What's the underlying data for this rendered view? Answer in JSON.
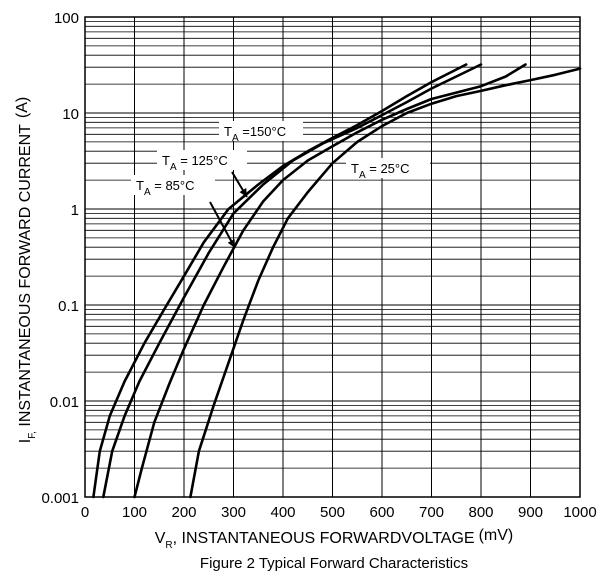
{
  "chart_data": {
    "type": "line",
    "title": "Figure 2 Typical Forward Characteristics",
    "xlabel": {
      "main": "V",
      "sub": "R",
      "rest": ", INSTANTANEOUS FORWARDVOLTAGE",
      "unit": "(mV)"
    },
    "ylabel": {
      "main": "I",
      "sub": "F,",
      "rest": " INSTANTANEOUS FORWARD CURRENT",
      "unit": "(A)"
    },
    "xlim": [
      0,
      1000
    ],
    "ylim": [
      0.001,
      100
    ],
    "yscale": "log",
    "grid": true,
    "x_ticks": [
      "0",
      "100",
      "200",
      "300",
      "400",
      "500",
      "600",
      "700",
      "800",
      "900",
      "1000"
    ],
    "y_ticks": [
      "0.001",
      "0.01",
      "0.1",
      "1",
      "10",
      "100"
    ],
    "series": [
      {
        "name": "T_A = 150°C",
        "label_main": "T",
        "label_sub": "A",
        "label_rest": " =150°C",
        "points": [
          [
            17,
            0.001
          ],
          [
            30,
            0.003
          ],
          [
            50,
            0.007
          ],
          [
            80,
            0.016
          ],
          [
            120,
            0.04
          ],
          [
            160,
            0.09
          ],
          [
            200,
            0.2
          ],
          [
            240,
            0.45
          ],
          [
            290,
            1.0
          ],
          [
            350,
            1.8
          ],
          [
            400,
            2.8
          ],
          [
            450,
            4.0
          ],
          [
            500,
            5.5
          ],
          [
            550,
            7.5
          ],
          [
            600,
            10.5
          ],
          [
            650,
            15
          ],
          [
            700,
            21
          ],
          [
            770,
            32
          ]
        ]
      },
      {
        "name": "T_A = 125°C",
        "label_main": "T",
        "label_sub": "A",
        "label_rest": " = 125°C",
        "points": [
          [
            37,
            0.001
          ],
          [
            55,
            0.003
          ],
          [
            80,
            0.007
          ],
          [
            110,
            0.016
          ],
          [
            150,
            0.04
          ],
          [
            200,
            0.12
          ],
          [
            250,
            0.35
          ],
          [
            300,
            0.9
          ],
          [
            360,
            1.8
          ],
          [
            420,
            3.2
          ],
          [
            480,
            4.8
          ],
          [
            550,
            7.0
          ],
          [
            600,
            9.5
          ],
          [
            650,
            13
          ],
          [
            700,
            18
          ],
          [
            750,
            24
          ],
          [
            800,
            32
          ]
        ]
      },
      {
        "name": "T_A = 85°C",
        "label_main": "T",
        "label_sub": "A",
        "label_rest": " = 85°C",
        "points": [
          [
            100,
            0.001
          ],
          [
            115,
            0.002
          ],
          [
            140,
            0.006
          ],
          [
            170,
            0.015
          ],
          [
            200,
            0.035
          ],
          [
            240,
            0.1
          ],
          [
            280,
            0.25
          ],
          [
            320,
            0.6
          ],
          [
            360,
            1.2
          ],
          [
            400,
            2.0
          ],
          [
            450,
            3.2
          ],
          [
            500,
            4.5
          ],
          [
            550,
            6.3
          ],
          [
            600,
            8.5
          ],
          [
            650,
            11
          ],
          [
            700,
            14
          ],
          [
            800,
            19
          ],
          [
            850,
            24
          ],
          [
            890,
            32
          ]
        ]
      },
      {
        "name": "T_A = 25°C",
        "label_main": "T",
        "label_sub": "A",
        "label_rest": " = 25°C",
        "points": [
          [
            213,
            0.001
          ],
          [
            230,
            0.003
          ],
          [
            260,
            0.009
          ],
          [
            290,
            0.025
          ],
          [
            320,
            0.07
          ],
          [
            350,
            0.18
          ],
          [
            380,
            0.4
          ],
          [
            410,
            0.8
          ],
          [
            450,
            1.5
          ],
          [
            500,
            3.0
          ],
          [
            550,
            5.0
          ],
          [
            600,
            7.3
          ],
          [
            650,
            10
          ],
          [
            700,
            12.5
          ],
          [
            750,
            15
          ],
          [
            800,
            17
          ],
          [
            850,
            19.5
          ],
          [
            900,
            22
          ],
          [
            950,
            25
          ],
          [
            1000,
            29
          ]
        ]
      }
    ]
  }
}
